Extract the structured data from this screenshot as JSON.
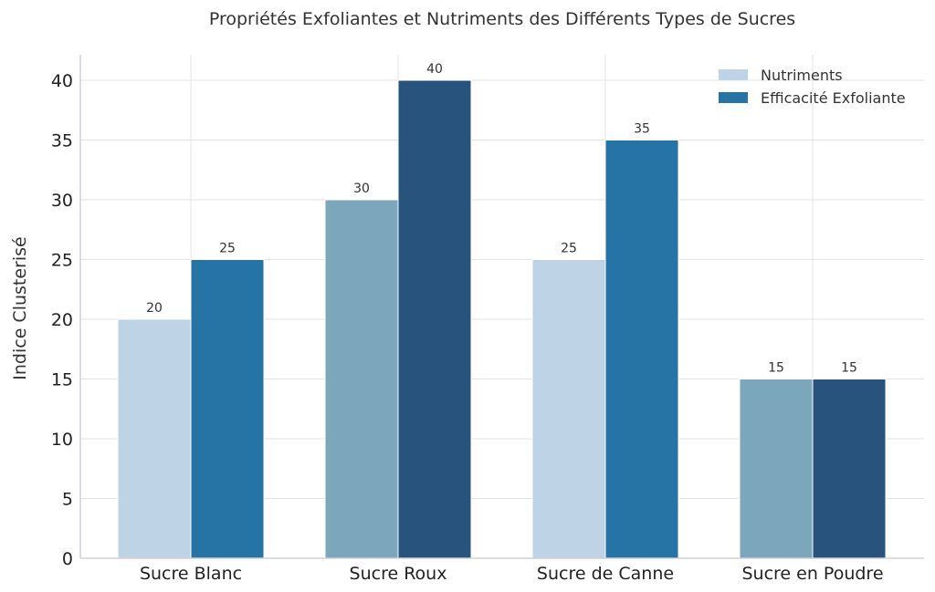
{
  "chart_data": {
    "type": "bar",
    "title": "Propriétés Exfoliantes et Nutriments des Différents Types de Sucres",
    "xlabel": "",
    "ylabel": "Indice Clusterisé",
    "ylim": [
      0,
      42
    ],
    "yticks": [
      "0",
      "5",
      "10",
      "15",
      "20",
      "25",
      "30",
      "35",
      "40"
    ],
    "grid": true,
    "legend_position": "top-right",
    "categories": [
      "Sucre Blanc",
      "Sucre Roux",
      "Sucre de Canne",
      "Sucre en Poudre"
    ],
    "series": [
      {
        "name": "Nutriments",
        "values": [
          20,
          30,
          25,
          15
        ],
        "value_labels": [
          "20",
          "30",
          "25",
          "15"
        ],
        "colors": [
          "#bfd3e6",
          "#7ba6bc",
          "#bfd3e6",
          "#7ba6bc"
        ],
        "legend_color": "#bfd3e6"
      },
      {
        "name": "Efficacité Exfoliante",
        "values": [
          25,
          40,
          35,
          15
        ],
        "value_labels": [
          "25",
          "40",
          "35",
          "15"
        ],
        "colors": [
          "#2673a6",
          "#28537c",
          "#2673a6",
          "#28537c"
        ],
        "legend_color": "#2673a6"
      }
    ]
  }
}
